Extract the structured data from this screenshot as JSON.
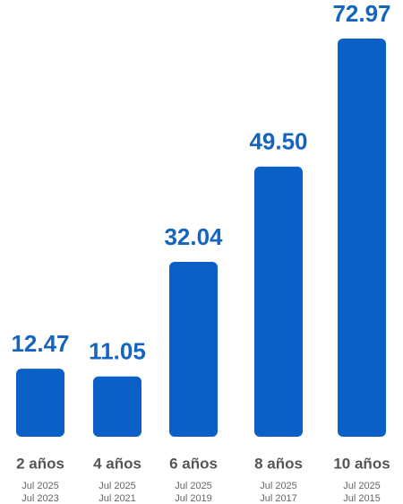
{
  "chart_data": {
    "type": "bar",
    "categories": [
      "2 años",
      "4 años",
      "6 años",
      "8 años",
      "10 años"
    ],
    "periods": [
      [
        "Jul 2025",
        "Jul 2023"
      ],
      [
        "Jul 2025",
        "Jul 2021"
      ],
      [
        "Jul 2025",
        "Jul 2019"
      ],
      [
        "Jul 2025",
        "Jul 2017"
      ],
      [
        "Jul 2025",
        "Jul 2015"
      ]
    ],
    "values": [
      12.47,
      11.05,
      32.04,
      49.5,
      72.97
    ],
    "value_labels": [
      "12.47",
      "11.05",
      "32.04",
      "49.50",
      "72.97"
    ],
    "color": "#0b60c8",
    "label_color": "#1565c0"
  }
}
